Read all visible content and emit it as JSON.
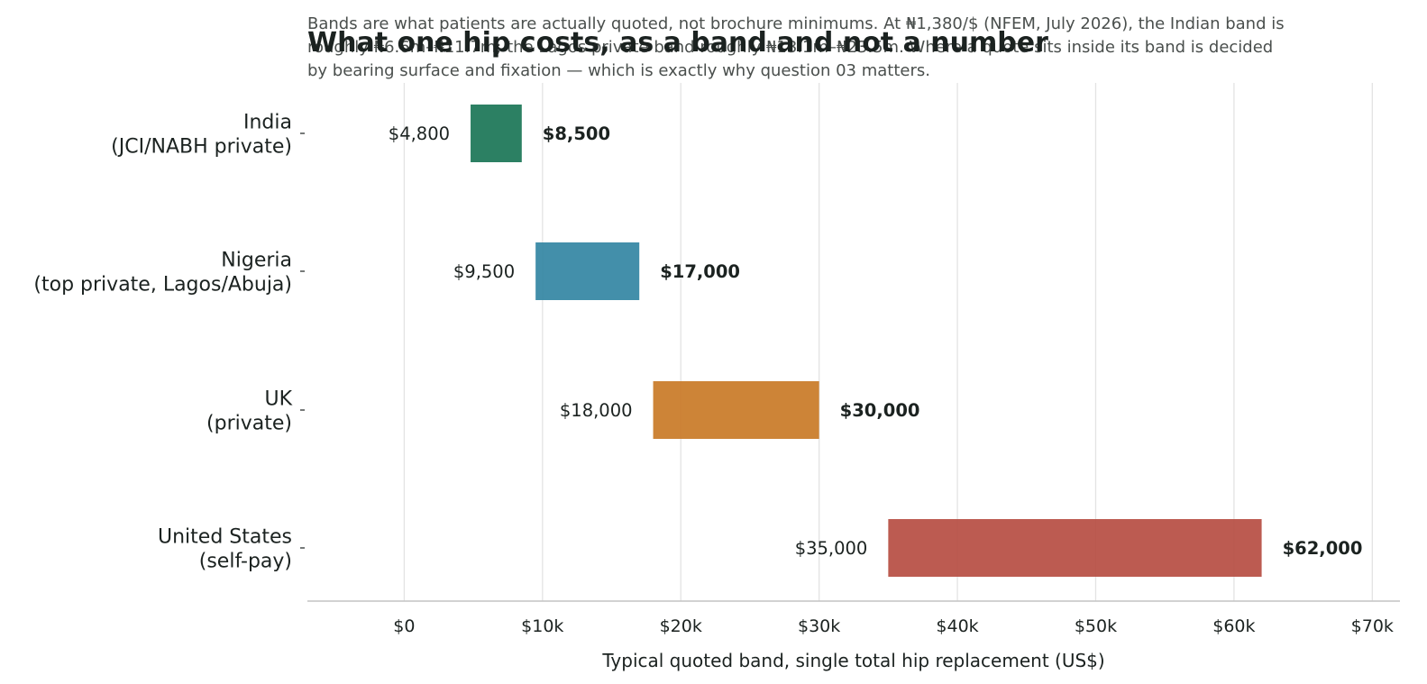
{
  "chart_data": {
    "type": "bar",
    "orientation": "horizontal-range",
    "title": "What one hip costs, as a band and not a number",
    "subtitle": [
      "Bands are what patients are actually quoted, not brochure minimums. At ₦1,380/$ (NFEM, July 2026), the Indian band is",
      "roughly ₦6.6m–₦11.7m; the Lagos private band roughly ₦13.1m–₦23.5m. Where a quote sits inside its band is decided",
      "by bearing surface and fixation — which is exactly why question 03 matters."
    ],
    "xlabel": "Typical quoted band, single total hip replacement (US$)",
    "ylabel": "",
    "xlim": [
      -7000,
      72000
    ],
    "xticks": [
      {
        "value": 0,
        "label": "$0"
      },
      {
        "value": 10000,
        "label": "$10k"
      },
      {
        "value": 20000,
        "label": "$20k"
      },
      {
        "value": 30000,
        "label": "$30k"
      },
      {
        "value": 40000,
        "label": "$40k"
      },
      {
        "value": 50000,
        "label": "$50k"
      },
      {
        "value": 60000,
        "label": "$60k"
      },
      {
        "value": 70000,
        "label": "$70k"
      }
    ],
    "grid": "vertical",
    "bars": [
      {
        "category": [
          "India",
          "(JCI/NABH private)"
        ],
        "low": 4800,
        "high": 8500,
        "low_label": "$4,800",
        "high_label": "$8,500",
        "color": "#1a7556"
      },
      {
        "category": [
          "Nigeria",
          "(top private, Lagos/Abuja)"
        ],
        "low": 9500,
        "high": 17000,
        "low_label": "$9,500",
        "high_label": "$17,000",
        "color": "#3386a3"
      },
      {
        "category": [
          "UK",
          "(private)"
        ],
        "low": 18000,
        "high": 30000,
        "low_label": "$18,000",
        "high_label": "$30,000",
        "color": "#c97a26"
      },
      {
        "category": [
          "United States",
          "(self-pay)"
        ],
        "low": 35000,
        "high": 62000,
        "low_label": "$35,000",
        "high_label": "$62,000",
        "color": "#b64d42"
      }
    ]
  }
}
